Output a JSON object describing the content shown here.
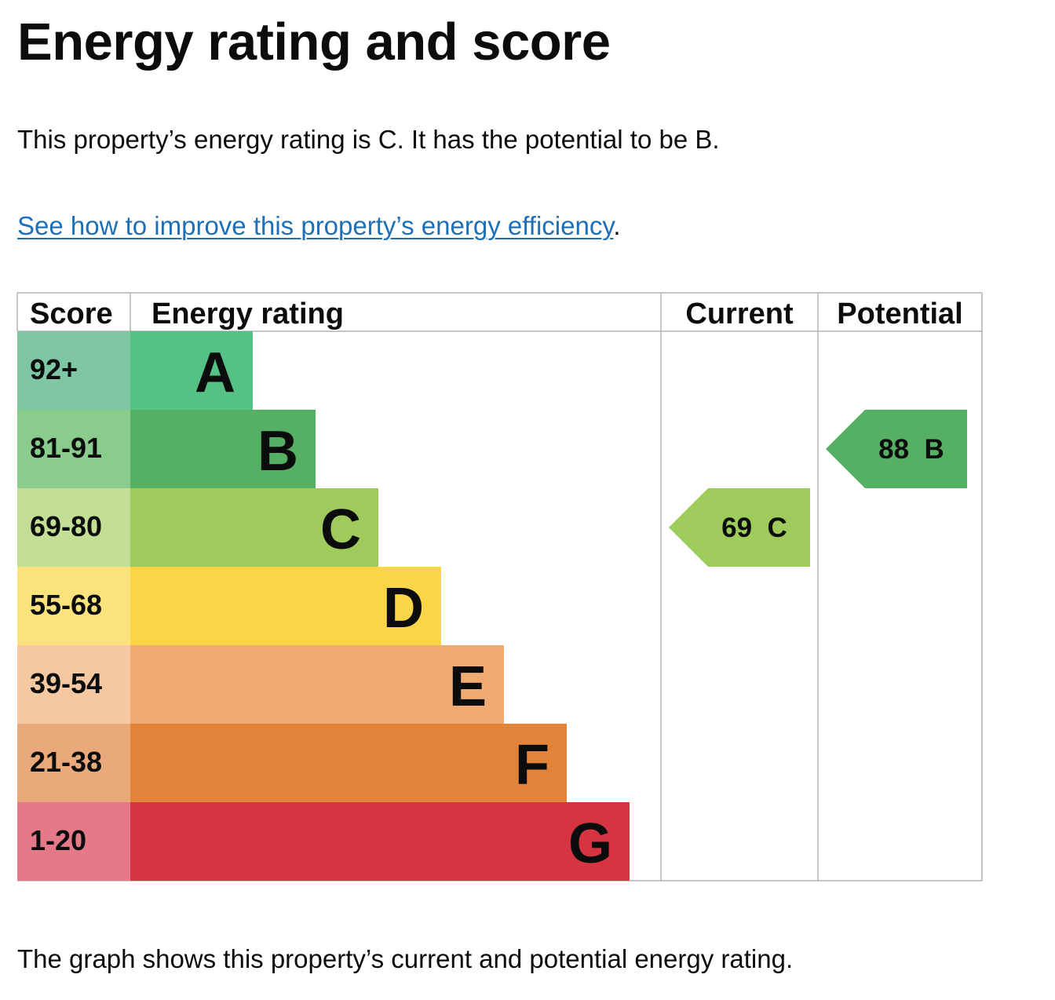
{
  "page": {
    "title": "Energy rating and score",
    "summary": "This property’s energy rating is C. It has the potential to be B.",
    "improve_link": "See how to improve this property’s energy efficiency",
    "improve_link_suffix": ".",
    "footer": "The graph shows this property’s current and potential energy rating."
  },
  "chart_data": {
    "type": "bar",
    "headers": {
      "score": "Score",
      "rating": "Energy rating",
      "current": "Current",
      "potential": "Potential"
    },
    "bands": [
      {
        "letter": "A",
        "score": "92+",
        "color": "#55c185",
        "score_bg": "#7fc6a4"
      },
      {
        "letter": "B",
        "score": "81-91",
        "color": "#55b064",
        "score_bg": "#8acb8e"
      },
      {
        "letter": "C",
        "score": "69-80",
        "color": "#9ecb5b",
        "score_bg": "#c3df95"
      },
      {
        "letter": "D",
        "score": "55-68",
        "color": "#f9d547",
        "score_bg": "#fbe27c"
      },
      {
        "letter": "E",
        "score": "39-54",
        "color": "#f0ab73",
        "score_bg": "#f5c8a1"
      },
      {
        "letter": "F",
        "score": "21-38",
        "color": "#e1843a",
        "score_bg": "#e9a97a"
      },
      {
        "letter": "G",
        "score": "1-20",
        "color": "#d73441",
        "score_bg": "#e47a88"
      }
    ],
    "current": {
      "score": 69,
      "band": "C",
      "label": "69  C",
      "color": "#9ecb5b"
    },
    "potential": {
      "score": 88,
      "band": "B",
      "label": "88  B",
      "color": "#55b064"
    }
  }
}
